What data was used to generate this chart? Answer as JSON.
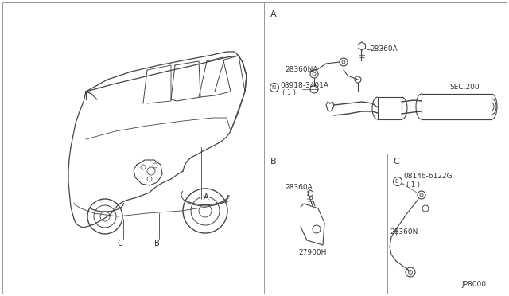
{
  "bg_color": "#ffffff",
  "line_color": "#444444",
  "text_color": "#333333",
  "border_color": "#999999",
  "part_code": "JP8000",
  "labels": {
    "section_A": "A",
    "section_B": "B",
    "section_C": "C",
    "part_28360A_top": "28360A",
    "part_28360NA": "28360NA",
    "part_08918_main": "08918-3401A",
    "part_08918_sub": "( 1 )",
    "part_SEC200": "SEC.200",
    "part_28360A_B": "28360A",
    "part_27900H": "27900H",
    "part_08146_main": "08146-6122G",
    "part_08146_sub": "( 1 )",
    "part_28360N": "28360N",
    "car_A": "A",
    "car_B": "B",
    "car_C": "C"
  },
  "figsize": [
    6.4,
    3.72
  ],
  "dpi": 100
}
